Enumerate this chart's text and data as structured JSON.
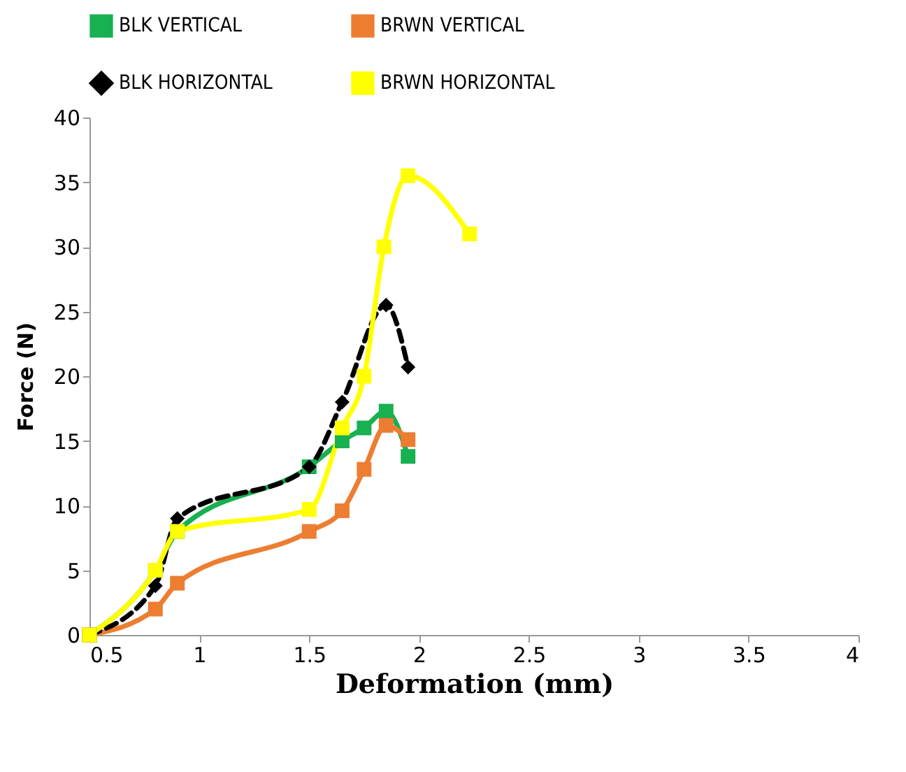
{
  "chart_data": {
    "type": "line",
    "xlabel": "Deformation (mm)",
    "ylabel": "Force (N)",
    "xlim": [
      0.5,
      4
    ],
    "xticks": [
      0.5,
      1,
      1.5,
      2,
      2.5,
      3,
      3.5,
      4
    ],
    "ylim": [
      0,
      40
    ],
    "yticks": [
      0,
      5,
      10,
      15,
      20,
      25,
      30,
      35,
      40
    ],
    "grid": false,
    "legend": "top",
    "series": [
      {
        "name": "BLK VERTICAL",
        "color": "#18b050",
        "marker": "square",
        "line_style": "solid",
        "x": [
          0.5,
          0.8,
          0.9,
          1.5,
          1.65,
          1.75,
          1.85,
          1.95
        ],
        "values": [
          0,
          5,
          8,
          13,
          15,
          16,
          17.3,
          13.8
        ]
      },
      {
        "name": "BRWN VERTICAL",
        "color": "#ed7d31",
        "marker": "square",
        "line_style": "solid",
        "x": [
          0.5,
          0.8,
          0.9,
          1.5,
          1.65,
          1.75,
          1.85,
          1.95
        ],
        "values": [
          0,
          2,
          4,
          8,
          9.6,
          12.8,
          16.2,
          15.1
        ]
      },
      {
        "name": "BLK HORIZONTAL",
        "color": "#000000",
        "marker": "diamond",
        "line_style": "dashed",
        "x": [
          0.5,
          0.8,
          0.9,
          1.5,
          1.65,
          1.85,
          1.95
        ],
        "values": [
          0,
          3.8,
          9,
          13,
          18,
          25.5,
          20.7
        ]
      },
      {
        "name": "BRWN HORIZONTAL",
        "color": "#ffff00",
        "marker": "square",
        "line_style": "solid",
        "x": [
          0.5,
          0.8,
          0.9,
          1.5,
          1.65,
          1.75,
          1.84,
          1.95,
          2.23
        ],
        "values": [
          0,
          5,
          8,
          9.7,
          16,
          20,
          30,
          35.5,
          31
        ]
      }
    ]
  }
}
